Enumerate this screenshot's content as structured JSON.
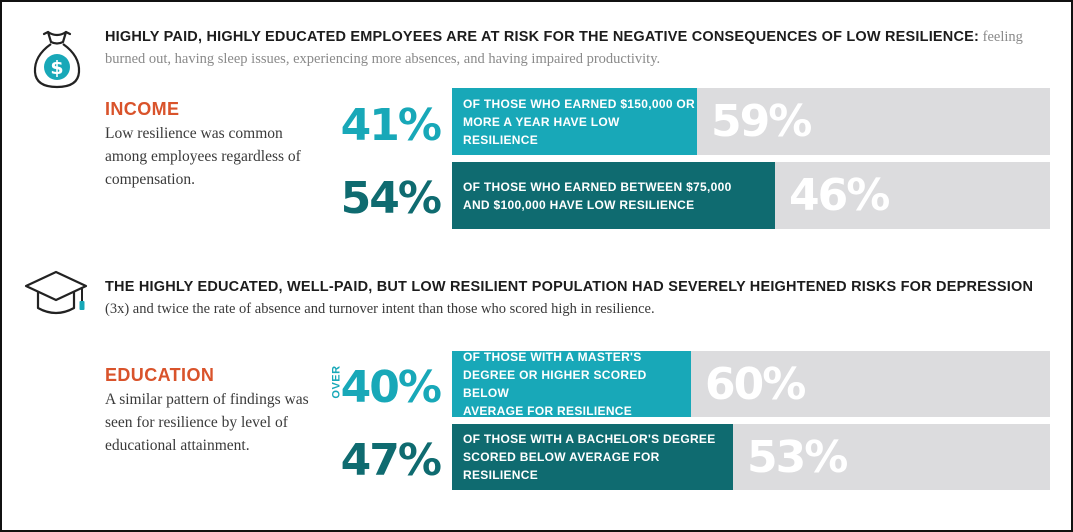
{
  "colors": {
    "accent_orange": "#d9532b",
    "teal_light": "#18a8b8",
    "teal_dark": "#0f6b70",
    "track_gray": "#dcdcde"
  },
  "icons": {
    "income": "money-bag-icon",
    "education": "graduation-cap-icon"
  },
  "income_headline": {
    "strong": "HIGHLY PAID, HIGHLY EDUCATED EMPLOYEES ARE AT RISK FOR THE NEGATIVE CONSEQUENCES OF LOW RESILIENCE:",
    "rest": "feeling burned out, having sleep issues, experiencing more absences, and having impaired productivity."
  },
  "income_section": {
    "title": "INCOME",
    "description": "Low resilience was common among employees regardless of compensation.",
    "rows": [
      {
        "big_value": "41%",
        "bar_text": "OF THOSE WHO EARNED $150,000 OR\nMORE A YEAR HAVE LOW RESILIENCE",
        "rest_value": "59%",
        "fraction": 0.41,
        "color": "#18a8b8"
      },
      {
        "big_value": "54%",
        "bar_text": "OF THOSE WHO EARNED BETWEEN $75,000\nAND $100,000 HAVE LOW RESILIENCE",
        "rest_value": "46%",
        "fraction": 0.54,
        "color": "#0f6b70"
      }
    ]
  },
  "education_headline": {
    "strong": "THE HIGHLY EDUCATED, WELL-PAID, BUT LOW RESILIENT POPULATION HAD SEVERELY HEIGHTENED RISKS FOR DEPRESSION",
    "rest": "(3x) and twice the rate of absence and turnover intent than those who scored high in resilience."
  },
  "education_section": {
    "title": "EDUCATION",
    "description": "A similar pattern of findings was seen for resilience by level of educational attainment.",
    "over_label": "OVER",
    "rows": [
      {
        "big_value": "40%",
        "bar_text": "OF THOSE WITH A MASTER'S\nDEGREE OR HIGHER SCORED BELOW\nAVERAGE FOR RESILIENCE",
        "rest_value": "60%",
        "fraction": 0.4,
        "color": "#18a8b8"
      },
      {
        "big_value": "47%",
        "bar_text": "OF THOSE WITH A BACHELOR'S DEGREE\nSCORED BELOW AVERAGE FOR RESILIENCE",
        "rest_value": "53%",
        "fraction": 0.47,
        "color": "#0f6b70"
      }
    ]
  }
}
